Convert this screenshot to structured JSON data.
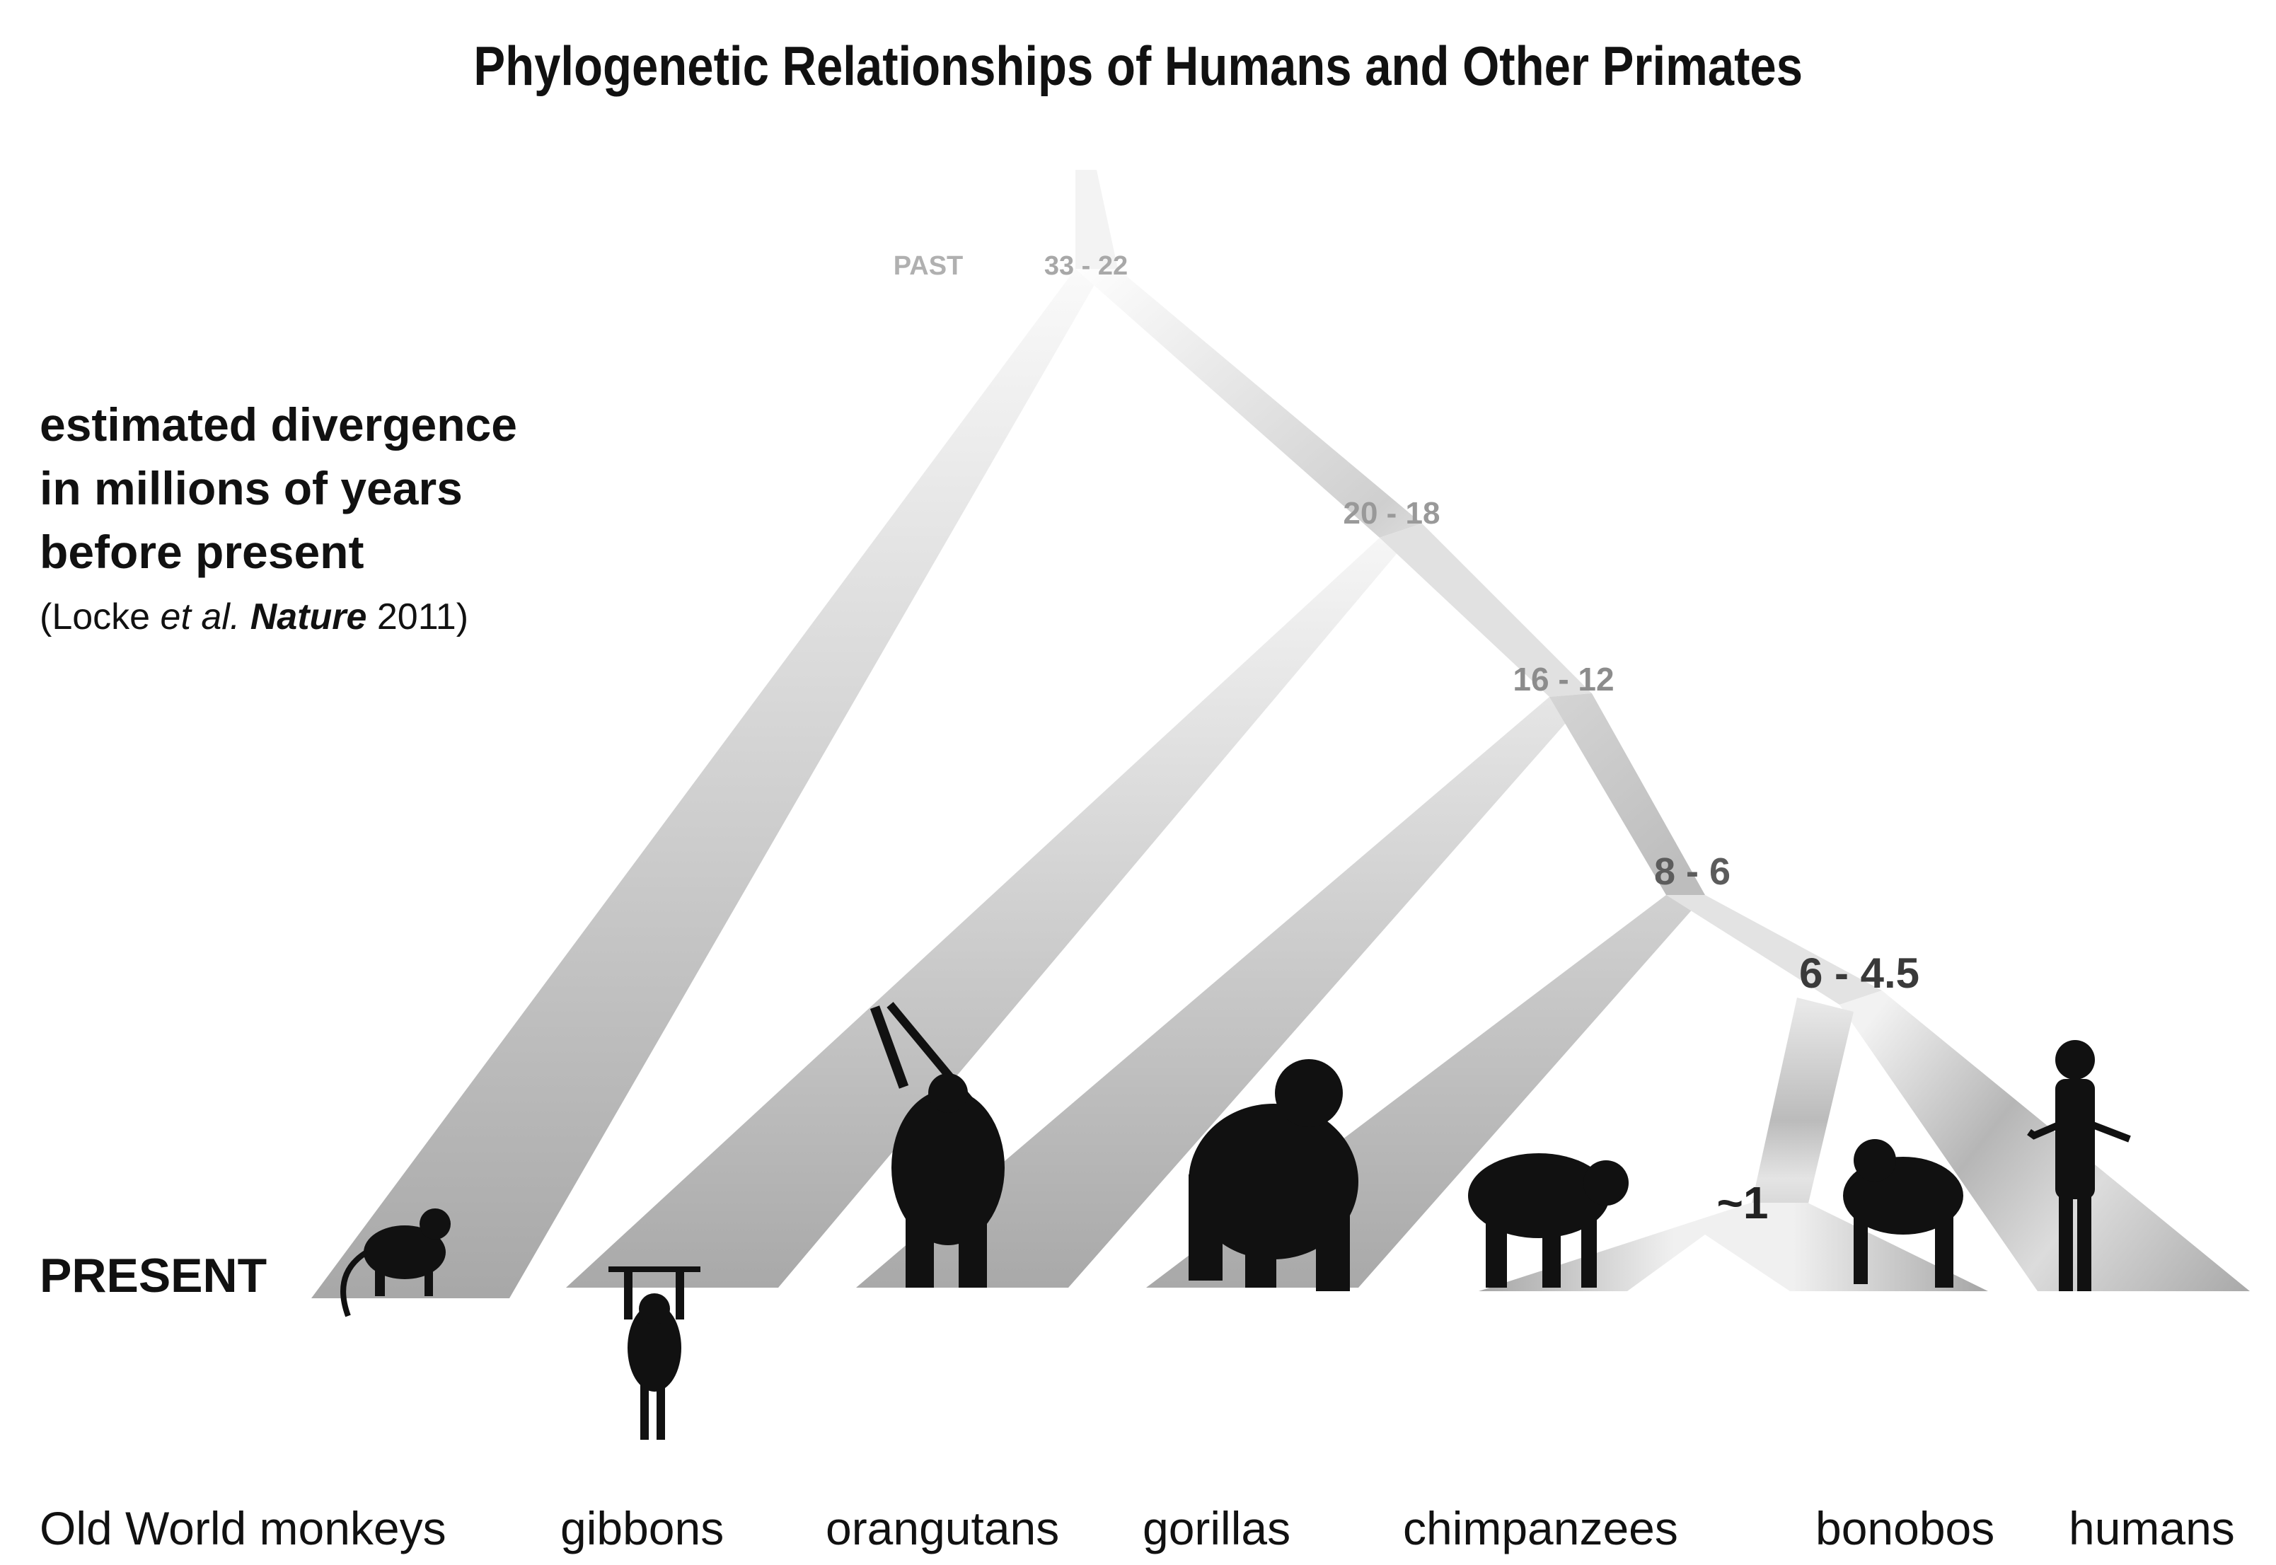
{
  "title": "Phylogenetic Relationships of Humans and Other Primates",
  "axis_note": {
    "line1": "estimated divergence",
    "line2": "in millions of years",
    "line3": "before present",
    "citation_open": "(Locke ",
    "citation_etal": "et al.",
    "citation_journal": "Nature",
    "citation_year": " 2011)"
  },
  "labels": {
    "past": "PAST",
    "present": "PRESENT"
  },
  "nodes": [
    {
      "id": "catarrhini",
      "label": "33 - 22"
    },
    {
      "id": "hominoidea",
      "label": "20 - 18"
    },
    {
      "id": "hominidae",
      "label": "16 - 12"
    },
    {
      "id": "homininae",
      "label": "8 - 6"
    },
    {
      "id": "hominini",
      "label": "6 - 4.5"
    },
    {
      "id": "pan",
      "label": "~1"
    }
  ],
  "taxa": [
    "Old World monkeys",
    "gibbons",
    "orangutans",
    "gorillas",
    "chimpanzees",
    "bonobos",
    "humans"
  ],
  "colors": {
    "branch_light": "#f4f4f4",
    "branch_dark": "#a9a9a9",
    "silhouette": "#111111"
  },
  "icons": [
    "monkey-silhouette-icon",
    "gibbon-silhouette-icon",
    "orangutan-silhouette-icon",
    "gorilla-silhouette-icon",
    "chimpanzee-silhouette-icon",
    "bonobo-silhouette-icon",
    "human-silhouette-icon"
  ]
}
